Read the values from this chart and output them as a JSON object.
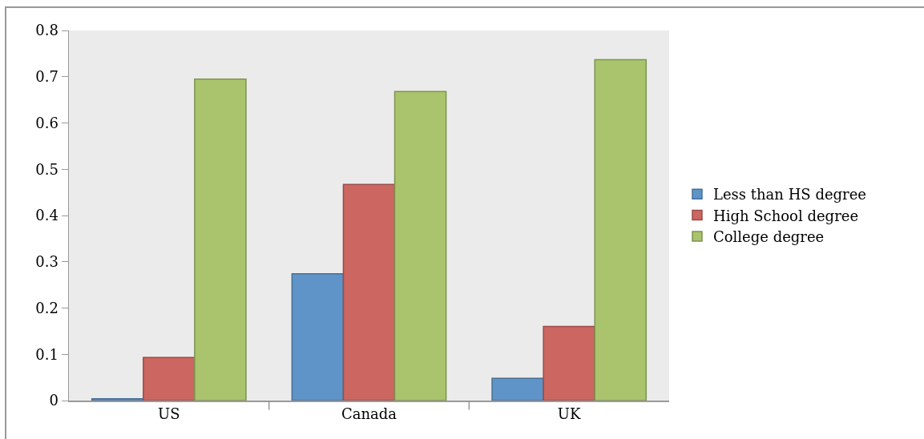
{
  "chart_data": {
    "type": "bar",
    "categories": [
      "US",
      "Canada",
      "UK"
    ],
    "series": [
      {
        "name": "Less than HS degree",
        "color": "#5f94c8",
        "values": [
          0.004,
          0.274,
          0.048
        ]
      },
      {
        "name": "High School degree",
        "color": "#cc6660",
        "values": [
          0.093,
          0.467,
          0.16
        ]
      },
      {
        "name": "College degree",
        "color": "#a9c46c",
        "values": [
          0.695,
          0.668,
          0.737
        ]
      }
    ],
    "ylim": [
      0,
      0.8
    ],
    "yticks": [
      0,
      0.1,
      0.2,
      0.3,
      0.4,
      0.5,
      0.6,
      0.7,
      0.8
    ],
    "grid": false,
    "legend": "right"
  }
}
